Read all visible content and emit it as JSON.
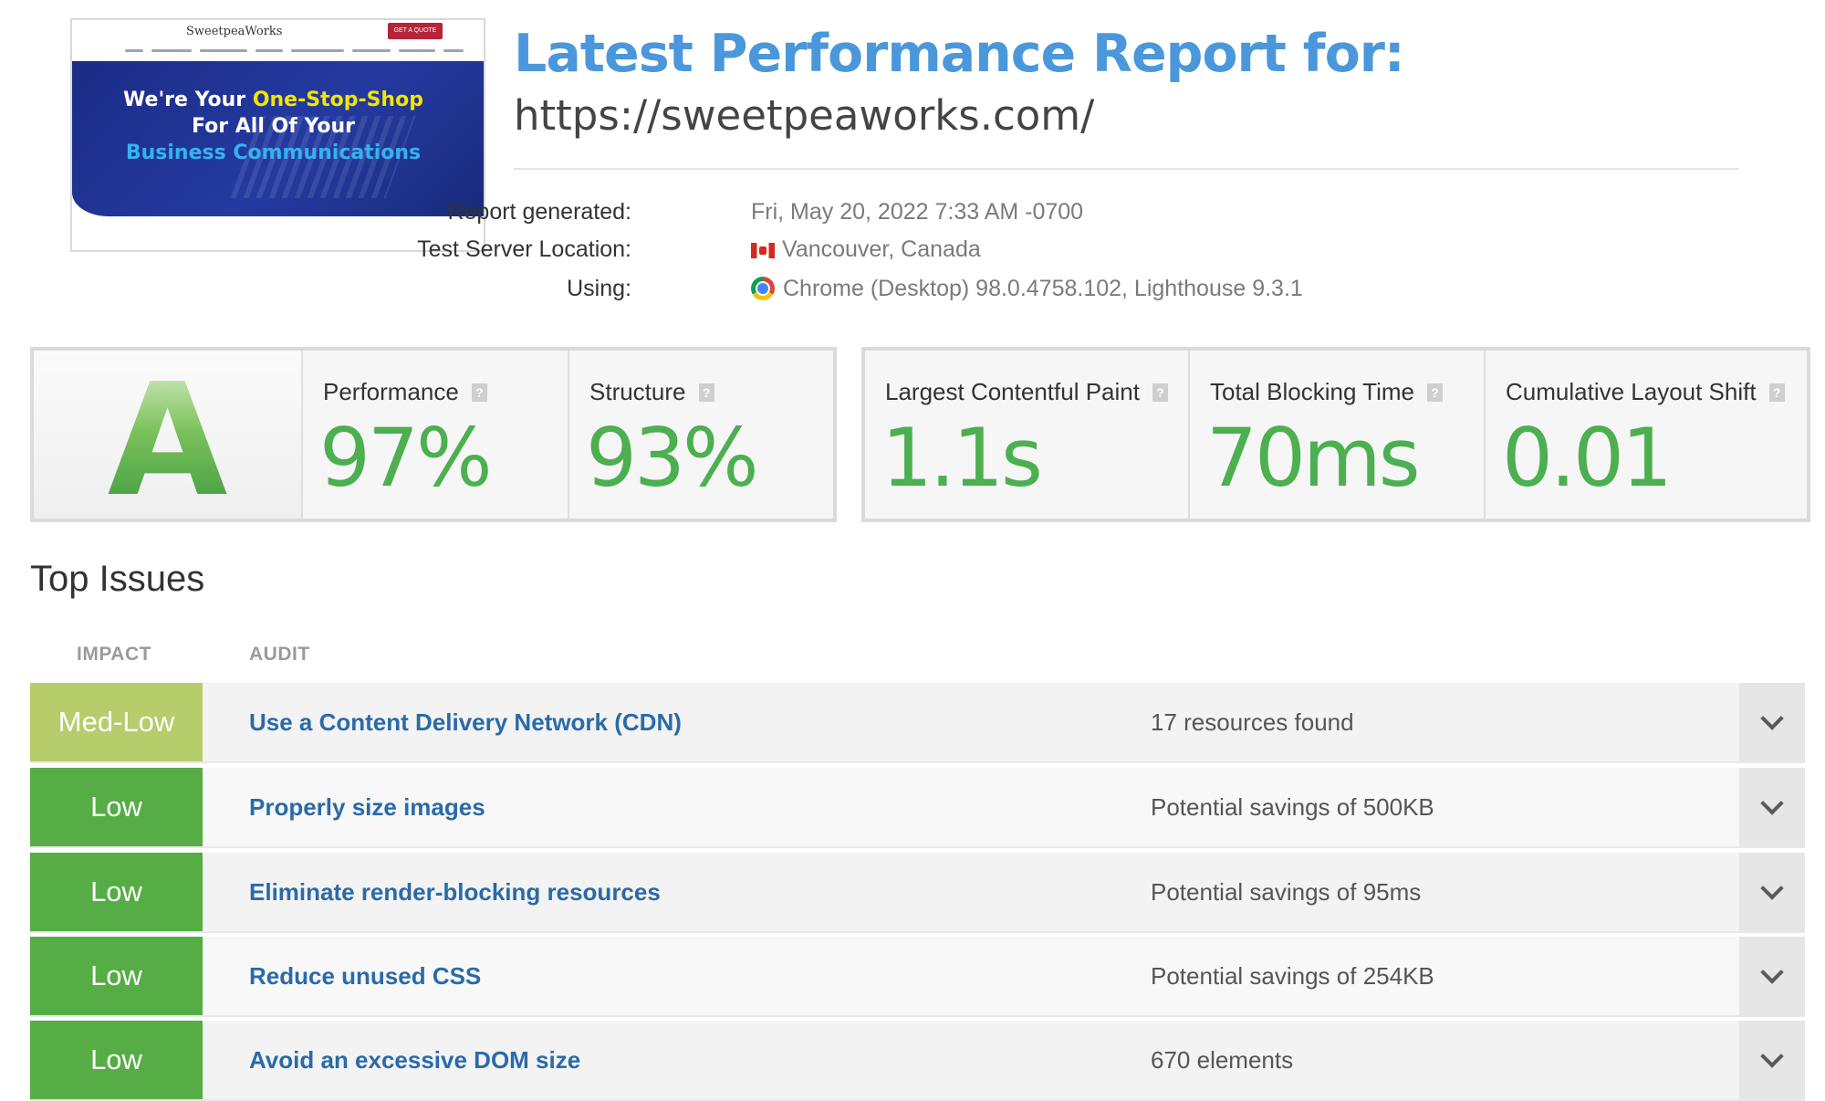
{
  "thumbnail": {
    "logo": "SweetpeaWorks",
    "cta": "GET A QUOTE",
    "hero_line1_pre": "We're Your ",
    "hero_line1_highlight": "One-Stop-Shop",
    "hero_line2": "For All Of Your",
    "hero_line3": "Business Communications"
  },
  "header": {
    "title": "Latest Performance Report for:",
    "url": "https://sweetpeaworks.com/"
  },
  "meta": {
    "generated_label": "Report generated:",
    "generated_value": "Fri, May 20, 2022 7:33 AM -0700",
    "location_label": "Test Server Location:",
    "location_value": "Vancouver, Canada",
    "location_icon": "canada-flag-icon",
    "using_label": "Using:",
    "using_value": "Chrome (Desktop) 98.0.4758.102, Lighthouse 9.3.1",
    "using_icon": "chrome-icon"
  },
  "scores": {
    "grade": "A",
    "performance_label": "Performance",
    "performance_value": "97%",
    "structure_label": "Structure",
    "structure_value": "93%",
    "help_glyph": "?"
  },
  "web_vitals": {
    "lcp_label": "Largest Contentful Paint",
    "lcp_value": "1.1s",
    "tbt_label": "Total Blocking Time",
    "tbt_value": "70ms",
    "cls_label": "Cumulative Layout Shift",
    "cls_value": "0.01"
  },
  "issues": {
    "title": "Top Issues",
    "impact_header": "IMPACT",
    "audit_header": "AUDIT",
    "rows": [
      {
        "impact": "Med-Low",
        "audit": "Use a Content Delivery Network (CDN)",
        "detail": "17 resources found"
      },
      {
        "impact": "Low",
        "audit": "Properly size images",
        "detail": "Potential savings of 500KB"
      },
      {
        "impact": "Low",
        "audit": "Eliminate render-blocking resources",
        "detail": "Potential savings of 95ms"
      },
      {
        "impact": "Low",
        "audit": "Reduce unused CSS",
        "detail": "Potential savings of 254KB"
      },
      {
        "impact": "Low",
        "audit": "Avoid an excessive DOM size",
        "detail": "670 elements"
      }
    ]
  },
  "colors": {
    "title_blue": "#4a98db",
    "score_green": "#4caf50",
    "low_green": "#56ad45",
    "medlow_green": "#b7cc6a",
    "audit_link": "#2a6aa8"
  }
}
